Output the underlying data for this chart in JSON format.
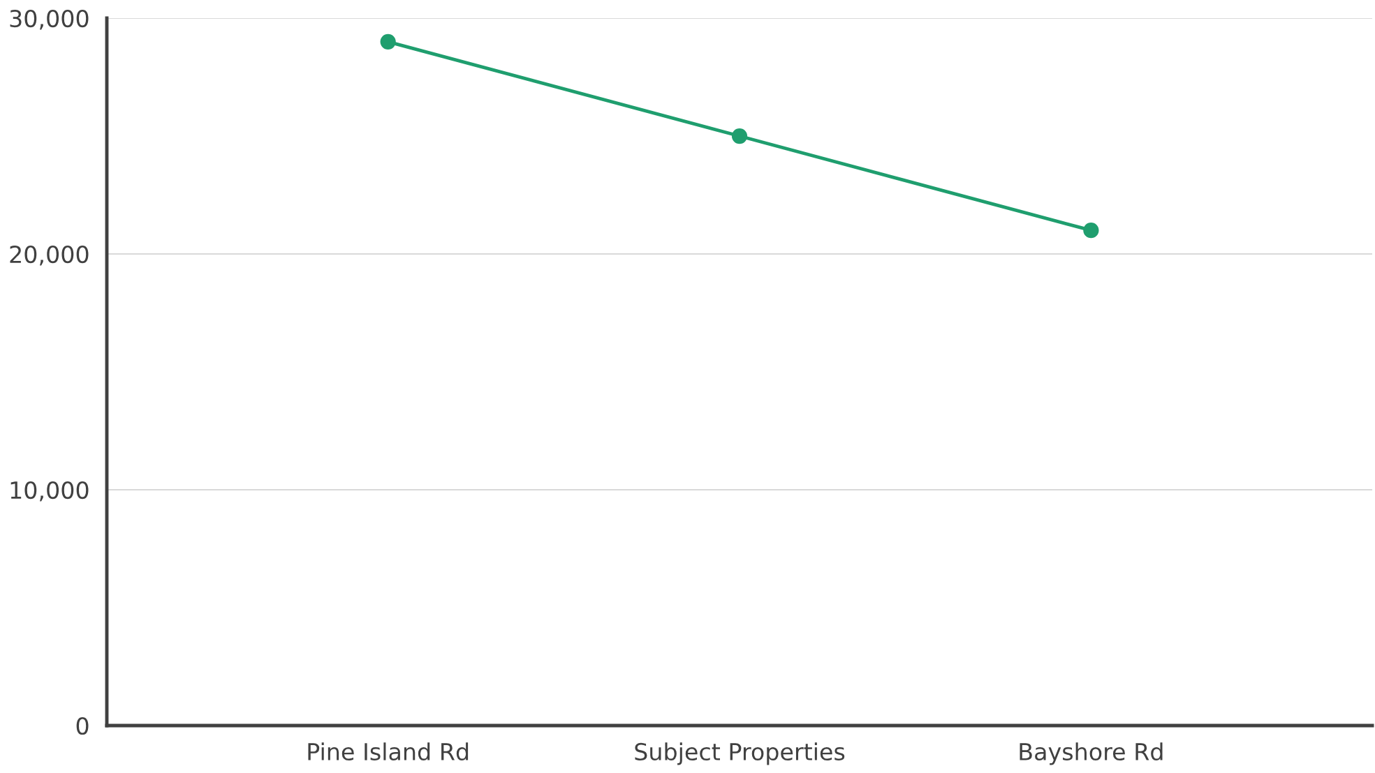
{
  "chart_data": {
    "type": "line",
    "categories": [
      "Pine Island Rd",
      "Subject Properties",
      "Bayshore Rd"
    ],
    "series": [
      {
        "color": "#1f9e6e",
        "values": [
          29000,
          25000,
          21000
        ]
      }
    ],
    "ylim": [
      0,
      30000
    ],
    "yticks": [
      {
        "value": 0,
        "label": "0"
      },
      {
        "value": 10000,
        "label": "10,000"
      },
      {
        "value": 20000,
        "label": "20,000"
      },
      {
        "value": 30000,
        "label": "30,000"
      }
    ],
    "grid": "y",
    "marker": "circle",
    "line_style": "solid"
  }
}
